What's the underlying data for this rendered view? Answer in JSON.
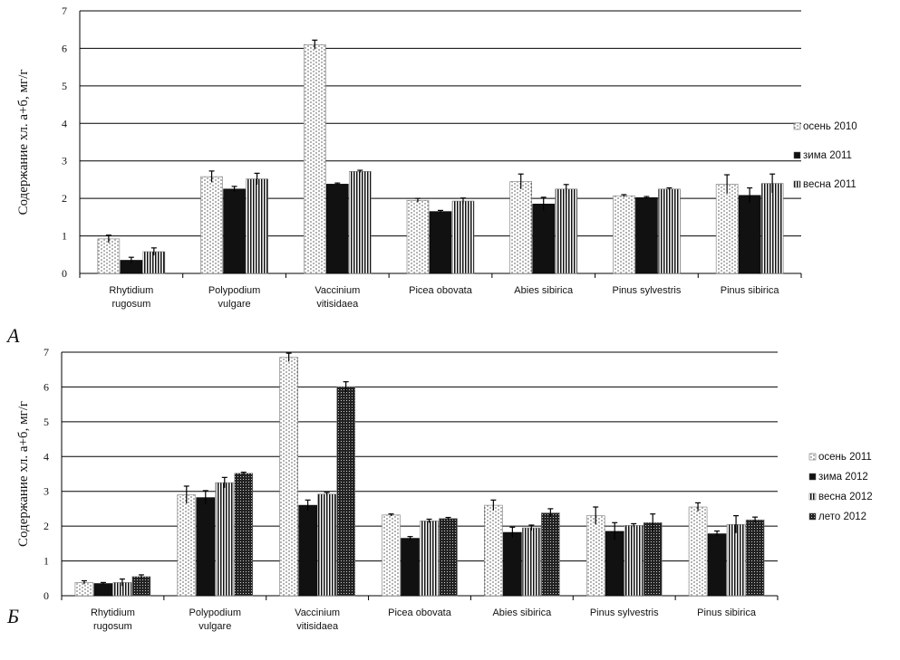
{
  "chart_data": [
    {
      "type": "bar",
      "panel_label": "A",
      "ylabel": "Содержание хл. а+б, мг/г",
      "ylim": [
        0,
        7
      ],
      "yticks": [
        0,
        1,
        2,
        3,
        4,
        5,
        6,
        7
      ],
      "grid": true,
      "legend_position": "right",
      "categories": [
        [
          "Rhytidium",
          "rugosum"
        ],
        [
          "Polypodium",
          "vulgare"
        ],
        [
          "Vaccinium",
          "vitisidaea"
        ],
        [
          "Picea obovata"
        ],
        [
          "Abies  sibirica"
        ],
        [
          "Pinus  sylvestris"
        ],
        [
          "Pinus sibirica"
        ]
      ],
      "series": [
        {
          "name": "осень 2010",
          "pattern": "dotted",
          "values": [
            0.92,
            2.58,
            6.1,
            1.95,
            2.45,
            2.07,
            2.38
          ],
          "errors": [
            0.1,
            0.15,
            0.12,
            0.05,
            0.2,
            0.03,
            0.25
          ]
        },
        {
          "name": "зима 2011",
          "pattern": "solid",
          "values": [
            0.35,
            2.25,
            2.38,
            1.65,
            1.85,
            2.02,
            2.08
          ],
          "errors": [
            0.08,
            0.07,
            0.03,
            0.03,
            0.18,
            0.03,
            0.2
          ]
        },
        {
          "name": "весна 2011",
          "pattern": "vstripe",
          "values": [
            0.58,
            2.52,
            2.72,
            1.93,
            2.25,
            2.25,
            2.4
          ],
          "errors": [
            0.1,
            0.15,
            0.03,
            0.08,
            0.12,
            0.03,
            0.25
          ]
        }
      ]
    },
    {
      "type": "bar",
      "panel_label": "Б",
      "ylabel": "Содержание хл. а+б, мг/г",
      "ylim": [
        0,
        7
      ],
      "yticks": [
        0,
        1,
        2,
        3,
        4,
        5,
        6,
        7
      ],
      "grid": true,
      "legend_position": "right",
      "categories": [
        [
          "Rhytidium",
          "rugosum"
        ],
        [
          "Polypodium",
          "vulgare"
        ],
        [
          "Vaccinium",
          "vitisidaea"
        ],
        [
          "Picea obovata"
        ],
        [
          "Abies  sibirica"
        ],
        [
          "Pinus  sylvestris"
        ],
        [
          "Pinus sibirica"
        ]
      ],
      "series": [
        {
          "name": "осень 2011",
          "pattern": "dotted",
          "values": [
            0.38,
            2.9,
            6.85,
            2.32,
            2.6,
            2.3,
            2.55
          ],
          "errors": [
            0.05,
            0.25,
            0.12,
            0.03,
            0.15,
            0.25,
            0.12
          ]
        },
        {
          "name": "зима 2012",
          "pattern": "solid",
          "values": [
            0.35,
            2.82,
            2.6,
            1.65,
            1.82,
            1.85,
            1.78
          ],
          "errors": [
            0.03,
            0.2,
            0.15,
            0.05,
            0.15,
            0.25,
            0.08
          ]
        },
        {
          "name": "весна 2012",
          "pattern": "vstripe",
          "values": [
            0.38,
            3.25,
            2.92,
            2.15,
            1.95,
            2.02,
            2.05
          ],
          "errors": [
            0.1,
            0.15,
            0.05,
            0.05,
            0.08,
            0.05,
            0.25
          ]
        },
        {
          "name": "лето 2012",
          "pattern": "grid",
          "values": [
            0.55,
            3.52,
            6.0,
            2.22,
            2.38,
            2.1,
            2.18
          ],
          "errors": [
            0.05,
            0.03,
            0.15,
            0.03,
            0.12,
            0.25,
            0.08
          ]
        }
      ]
    }
  ]
}
